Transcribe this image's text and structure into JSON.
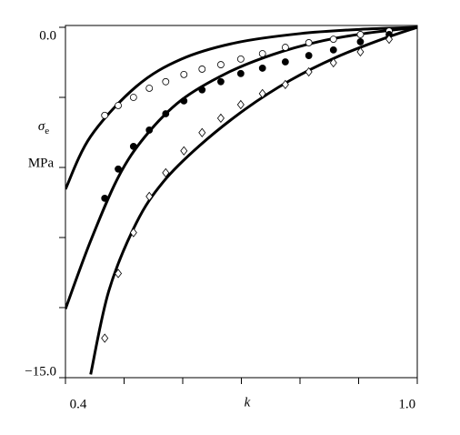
{
  "chart_data": {
    "type": "scatter",
    "x_label": "k",
    "y_label": {
      "symbol": "σ",
      "subscript": "e"
    },
    "y_unit": "MPa",
    "xlim": [
      0.4,
      1.0
    ],
    "ylim": [
      -15,
      0
    ],
    "xticks": [
      0.4,
      {
        "value": 1.0,
        "label": "1.0"
      }
    ],
    "xminorticks": [
      0.5,
      0.6,
      0.7,
      0.8,
      0.9
    ],
    "yticks": [
      {
        "value": 0,
        "label": "0.0"
      },
      {
        "value": -15,
        "label": "−15.0"
      }
    ],
    "yminorticks": [
      -3,
      -6,
      -9,
      -12
    ],
    "series": [
      {
        "kind": "line",
        "color": "#000000",
        "x": [
          0.4,
          0.443,
          0.521,
          0.598,
          0.691,
          0.8,
          0.909,
          1.0
        ],
        "values": [
          -6.93,
          -4.67,
          -2.53,
          -1.36,
          -0.66,
          -0.27,
          -0.08,
          0
        ]
      },
      {
        "kind": "line",
        "color": "#000000",
        "x": [
          0.4,
          0.443,
          0.49,
          0.536,
          0.598,
          0.676,
          0.753,
          0.831,
          0.909,
          1.0
        ],
        "values": [
          -12.06,
          -9.14,
          -6.42,
          -4.67,
          -3.11,
          -1.95,
          -1.17,
          -0.62,
          -0.27,
          0
        ]
      },
      {
        "kind": "line",
        "color": "#000000",
        "x": [
          0.443,
          0.474,
          0.521,
          0.567,
          0.629,
          0.707,
          0.784,
          0.862,
          0.94,
          1.0
        ],
        "values": [
          -14.86,
          -11.28,
          -8.37,
          -6.61,
          -5.06,
          -3.5,
          -2.26,
          -1.28,
          -0.51,
          0
        ]
      },
      {
        "kind": "points",
        "marker": "open-circle",
        "color": "#000000",
        "x": [
          0.467,
          0.49,
          0.516,
          0.543,
          0.571,
          0.602,
          0.633,
          0.665,
          0.699,
          0.736,
          0.775,
          0.815,
          0.857,
          0.903,
          0.952
        ],
        "values": [
          -3.77,
          -3.35,
          -3.0,
          -2.61,
          -2.33,
          -2.02,
          -1.79,
          -1.6,
          -1.36,
          -1.13,
          -0.86,
          -0.66,
          -0.51,
          -0.31,
          -0.16
        ]
      },
      {
        "kind": "points",
        "marker": "filled-circle",
        "color": "#000000",
        "x": [
          0.467,
          0.49,
          0.516,
          0.543,
          0.571,
          0.602,
          0.633,
          0.665,
          0.699,
          0.736,
          0.775,
          0.815,
          0.857,
          0.903,
          0.952
        ],
        "values": [
          -7.32,
          -6.07,
          -5.1,
          -4.4,
          -3.7,
          -3.15,
          -2.68,
          -2.33,
          -1.98,
          -1.75,
          -1.48,
          -1.21,
          -0.97,
          -0.62,
          -0.31
        ]
      },
      {
        "kind": "points",
        "marker": "open-diamond",
        "color": "#000000",
        "x": [
          0.467,
          0.49,
          0.516,
          0.543,
          0.571,
          0.602,
          0.633,
          0.665,
          0.699,
          0.736,
          0.775,
          0.815,
          0.857,
          0.903,
          0.952
        ],
        "values": [
          -13.31,
          -10.54,
          -8.79,
          -7.24,
          -6.23,
          -5.29,
          -4.51,
          -3.89,
          -3.31,
          -2.84,
          -2.45,
          -1.91,
          -1.52,
          -1.05,
          -0.51
        ]
      }
    ]
  }
}
